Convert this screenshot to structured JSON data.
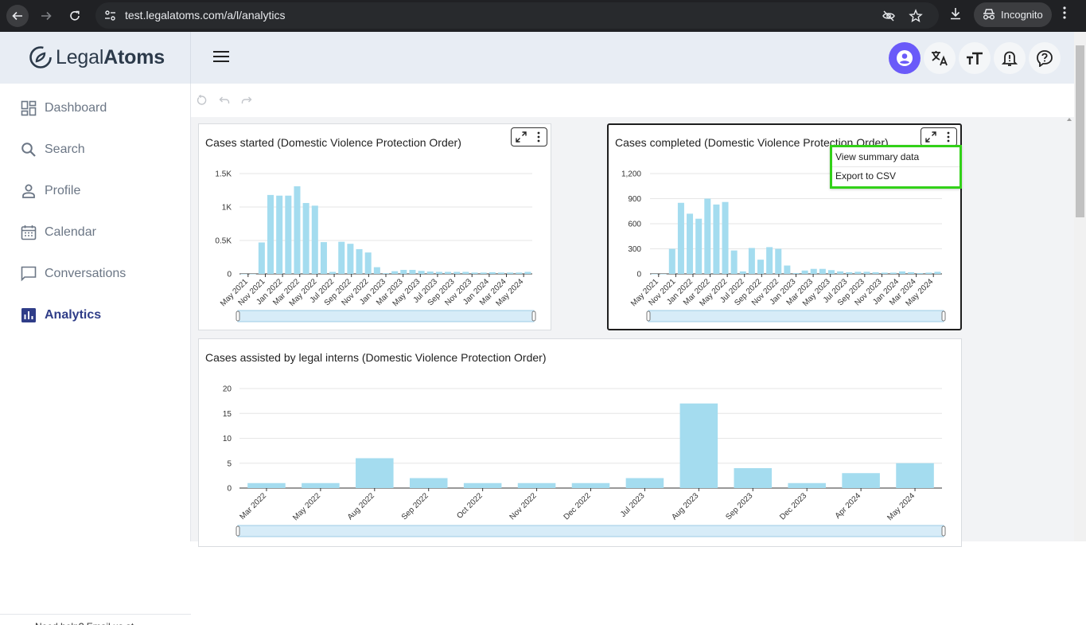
{
  "browser": {
    "url": "test.legalatoms.com/a/l/analytics",
    "incognito_label": "Incognito"
  },
  "app": {
    "logo_text_light": "Legal",
    "logo_text_bold": "Atoms",
    "accent_color": "#6a5af9"
  },
  "sidebar": {
    "items": [
      {
        "label": "Dashboard",
        "icon": "dashboard-icon"
      },
      {
        "label": "Search",
        "icon": "search-icon"
      },
      {
        "label": "Profile",
        "icon": "profile-icon"
      },
      {
        "label": "Calendar",
        "icon": "calendar-icon"
      },
      {
        "label": "Conversations",
        "icon": "chat-icon"
      },
      {
        "label": "Analytics",
        "icon": "analytics-icon",
        "active": true
      }
    ],
    "footer_text": "Need help? Email us at"
  },
  "cards": {
    "started": {
      "title": "Cases started (Domestic Violence Protection Order)"
    },
    "completed": {
      "title": "Cases completed (Domestic Violence Protection Order)"
    },
    "interns": {
      "title": "Cases assisted by legal interns (Domestic Violence Protection Order)"
    }
  },
  "menu": {
    "items": [
      "View summary data",
      "Export to CSV"
    ]
  },
  "chart_data": [
    {
      "type": "bar",
      "title": "Cases started (Domestic Violence Protection Order)",
      "bar_color": "#a4dcef",
      "x_tick_labels": [
        "May 2021",
        "Nov 2021",
        "Jan 2022",
        "Mar 2022",
        "May 2022",
        "Jul 2022",
        "Sep 2022",
        "Nov 2022",
        "Jan 2023",
        "Mar 2023",
        "May 2023",
        "Jul 2023",
        "Sep 2023",
        "Nov 2023",
        "Jan 2024",
        "Mar 2024",
        "May 2024"
      ],
      "y_tick_labels": [
        "0",
        "0.5K",
        "1K",
        "1.5K"
      ],
      "ylim": [
        0,
        1500
      ],
      "values": [
        0,
        0,
        470,
        1180,
        1170,
        1170,
        1310,
        1060,
        1020,
        475,
        30,
        480,
        450,
        370,
        320,
        100,
        10,
        40,
        60,
        60,
        45,
        35,
        30,
        30,
        30,
        30,
        20,
        20,
        25,
        20,
        20,
        20,
        30
      ]
    },
    {
      "type": "bar",
      "title": "Cases completed (Domestic Violence Protection Order)",
      "bar_color": "#a4dcef",
      "x_tick_labels": [
        "May 2021",
        "Nov 2021",
        "Jan 2022",
        "Mar 2022",
        "May 2022",
        "Jul 2022",
        "Sep 2022",
        "Nov 2022",
        "Jan 2023",
        "Mar 2023",
        "May 2023",
        "Jul 2023",
        "Sep 2023",
        "Nov 2023",
        "Jan 2024",
        "Mar 2024",
        "May 2024"
      ],
      "y_tick_labels": [
        "0",
        "300",
        "600",
        "900",
        "1,200"
      ],
      "ylim": [
        0,
        1200
      ],
      "values": [
        0,
        0,
        300,
        850,
        720,
        660,
        900,
        830,
        860,
        280,
        30,
        310,
        170,
        320,
        300,
        100,
        10,
        40,
        60,
        60,
        45,
        30,
        20,
        25,
        25,
        20,
        15,
        15,
        30,
        20,
        10,
        15,
        25
      ]
    },
    {
      "type": "bar",
      "title": "Cases assisted by legal interns (Domestic Violence Protection Order)",
      "bar_color": "#a4dcef",
      "categories": [
        "Mar 2022",
        "May 2022",
        "Aug 2022",
        "Sep 2022",
        "Oct 2022",
        "Nov 2022",
        "Dec 2022",
        "Jul 2023",
        "Aug 2023",
        "Sep 2023",
        "Dec 2023",
        "Apr 2024",
        "May 2024"
      ],
      "values": [
        1,
        1,
        6,
        2,
        1,
        1,
        1,
        2,
        17,
        4,
        1,
        3,
        5
      ],
      "y_tick_labels": [
        "0",
        "5",
        "10",
        "15",
        "20"
      ],
      "ylim": [
        0,
        20
      ]
    }
  ]
}
